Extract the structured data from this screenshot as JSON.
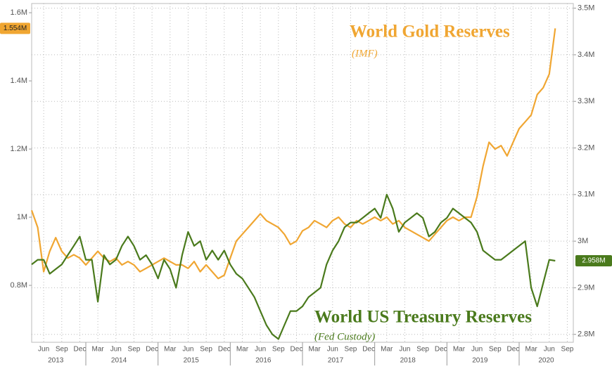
{
  "chart_data": {
    "type": "line",
    "x": [
      "2013-04",
      "2013-05",
      "2013-06",
      "2013-07",
      "2013-08",
      "2013-09",
      "2013-10",
      "2013-11",
      "2013-12",
      "2014-01",
      "2014-02",
      "2014-03",
      "2014-04",
      "2014-05",
      "2014-06",
      "2014-07",
      "2014-08",
      "2014-09",
      "2014-10",
      "2014-11",
      "2014-12",
      "2015-01",
      "2015-02",
      "2015-03",
      "2015-04",
      "2015-05",
      "2015-06",
      "2015-07",
      "2015-08",
      "2015-09",
      "2015-10",
      "2015-11",
      "2015-12",
      "2016-01",
      "2016-02",
      "2016-03",
      "2016-04",
      "2016-05",
      "2016-06",
      "2016-07",
      "2016-08",
      "2016-09",
      "2016-10",
      "2016-11",
      "2016-12",
      "2017-01",
      "2017-02",
      "2017-03",
      "2017-04",
      "2017-05",
      "2017-06",
      "2017-07",
      "2017-08",
      "2017-09",
      "2017-10",
      "2017-11",
      "2017-12",
      "2018-01",
      "2018-02",
      "2018-03",
      "2018-04",
      "2018-05",
      "2018-06",
      "2018-07",
      "2018-08",
      "2018-09",
      "2018-10",
      "2018-11",
      "2018-12",
      "2019-01",
      "2019-02",
      "2019-03",
      "2019-04",
      "2019-05",
      "2019-06",
      "2019-07",
      "2019-08",
      "2019-09",
      "2019-10",
      "2019-11",
      "2019-12",
      "2020-01",
      "2020-02",
      "2020-03",
      "2020-04",
      "2020-05",
      "2020-06",
      "2020-07"
    ],
    "xlim": [
      "2013-04",
      "2020-10"
    ],
    "xticks": [
      {
        "value": "2013-06",
        "label": "Jun"
      },
      {
        "value": "2013-09",
        "label": "Sep"
      },
      {
        "value": "2013-12",
        "label": "Dec"
      },
      {
        "value": "2014-03",
        "label": "Mar"
      },
      {
        "value": "2014-06",
        "label": "Jun"
      },
      {
        "value": "2014-09",
        "label": "Sep"
      },
      {
        "value": "2014-12",
        "label": "Dec"
      },
      {
        "value": "2015-03",
        "label": "Mar"
      },
      {
        "value": "2015-06",
        "label": "Jun"
      },
      {
        "value": "2015-09",
        "label": "Sep"
      },
      {
        "value": "2015-12",
        "label": "Dec"
      },
      {
        "value": "2016-03",
        "label": "Mar"
      },
      {
        "value": "2016-06",
        "label": "Jun"
      },
      {
        "value": "2016-09",
        "label": "Sep"
      },
      {
        "value": "2016-12",
        "label": "Dec"
      },
      {
        "value": "2017-03",
        "label": "Mar"
      },
      {
        "value": "2017-06",
        "label": "Jun"
      },
      {
        "value": "2017-09",
        "label": "Sep"
      },
      {
        "value": "2017-12",
        "label": "Dec"
      },
      {
        "value": "2018-03",
        "label": "Mar"
      },
      {
        "value": "2018-06",
        "label": "Jun"
      },
      {
        "value": "2018-09",
        "label": "Sep"
      },
      {
        "value": "2018-12",
        "label": "Dec"
      },
      {
        "value": "2019-03",
        "label": "Mar"
      },
      {
        "value": "2019-06",
        "label": "Jun"
      },
      {
        "value": "2019-09",
        "label": "Sep"
      },
      {
        "value": "2019-12",
        "label": "Dec"
      },
      {
        "value": "2020-03",
        "label": "Mar"
      },
      {
        "value": "2020-06",
        "label": "Jun"
      },
      {
        "value": "2020-09",
        "label": "Sep"
      }
    ],
    "years": [
      "2013",
      "2014",
      "2015",
      "2016",
      "2017",
      "2018",
      "2019",
      "2020"
    ],
    "ylim": [
      0.633,
      1.627
    ],
    "yticks": [
      {
        "value": 0.8,
        "label": "0.8M"
      },
      {
        "value": 1,
        "label": "1M"
      },
      {
        "value": 1.2,
        "label": "1.2M"
      },
      {
        "value": 1.4,
        "label": "1.4M"
      },
      {
        "value": 1.6,
        "label": "1.6M"
      }
    ],
    "y2lim": [
      2.783,
      3.51
    ],
    "y2ticks": [
      {
        "value": 2.8,
        "label": "2.8M"
      },
      {
        "value": 2.9,
        "label": "2.9M"
      },
      {
        "value": 3,
        "label": "3M"
      },
      {
        "value": 3.1,
        "label": "3.1M"
      },
      {
        "value": 3.2,
        "label": "3.2M"
      },
      {
        "value": 3.3,
        "label": "3.3M"
      },
      {
        "value": 3.4,
        "label": "3.4M"
      },
      {
        "value": 3.5,
        "label": "3.5M"
      }
    ],
    "grid": true,
    "series": [
      {
        "name": "World Gold Reserves",
        "source": "(IMF)",
        "color": "#f0a632",
        "end_value_label": "1.554M",
        "values": [
          1.02,
          0.97,
          0.84,
          0.9,
          0.94,
          0.9,
          0.88,
          0.89,
          0.88,
          0.86,
          0.88,
          0.9,
          0.88,
          0.87,
          0.88,
          0.86,
          0.87,
          0.86,
          0.84,
          0.85,
          0.86,
          0.87,
          0.88,
          0.87,
          0.86,
          0.86,
          0.85,
          0.87,
          0.84,
          0.86,
          0.84,
          0.82,
          0.83,
          0.88,
          0.93,
          0.95,
          0.97,
          0.99,
          1.01,
          0.99,
          0.98,
          0.97,
          0.95,
          0.92,
          0.93,
          0.96,
          0.97,
          0.99,
          0.98,
          0.97,
          0.99,
          1.0,
          0.98,
          0.97,
          0.99,
          0.98,
          0.99,
          1.0,
          0.99,
          1.0,
          0.98,
          0.99,
          0.97,
          0.96,
          0.95,
          0.94,
          0.93,
          0.95,
          0.97,
          0.99,
          1.0,
          0.99,
          1.0,
          1.0,
          1.06,
          1.15,
          1.22,
          1.2,
          1.21,
          1.18,
          1.22,
          1.26,
          1.28,
          1.3,
          1.36,
          1.38,
          1.42,
          1.554
        ]
      },
      {
        "name": "World US Treasury Reserves",
        "source": "(Fed Custody)",
        "color": "#4a7a1c",
        "axis": "y2",
        "end_value_label": "2.958M",
        "values": [
          2.95,
          2.96,
          2.96,
          2.93,
          2.94,
          2.95,
          2.97,
          2.99,
          3.01,
          2.96,
          2.96,
          2.87,
          2.97,
          2.95,
          2.96,
          2.99,
          3.01,
          2.99,
          2.96,
          2.97,
          2.95,
          2.92,
          2.96,
          2.94,
          2.9,
          2.97,
          3.02,
          2.99,
          3.0,
          2.96,
          2.98,
          2.96,
          2.98,
          2.95,
          2.93,
          2.92,
          2.9,
          2.88,
          2.85,
          2.82,
          2.8,
          2.79,
          2.82,
          2.85,
          2.85,
          2.86,
          2.88,
          2.89,
          2.9,
          2.95,
          2.98,
          3.0,
          3.03,
          3.04,
          3.04,
          3.05,
          3.06,
          3.07,
          3.05,
          3.1,
          3.07,
          3.02,
          3.04,
          3.05,
          3.06,
          3.05,
          3.01,
          3.02,
          3.04,
          3.05,
          3.07,
          3.06,
          3.05,
          3.04,
          3.02,
          2.98,
          2.97,
          2.96,
          2.96,
          2.97,
          2.98,
          2.99,
          3.0,
          2.9,
          2.86,
          2.91,
          2.96,
          2.958
        ]
      }
    ]
  }
}
